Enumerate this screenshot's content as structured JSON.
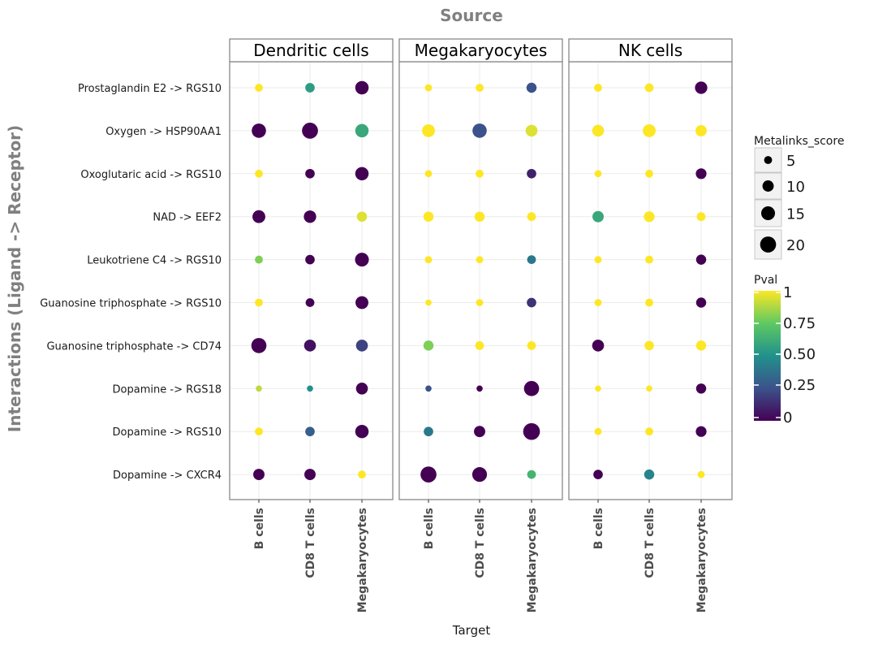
{
  "chart_data": {
    "type": "scatter",
    "title": "Source",
    "xlabel": "Target",
    "ylabel": "Interactions (Ligand -> Receptor)",
    "facets": [
      "Dendritic cells",
      "Megakaryocytes",
      "NK cells"
    ],
    "x_categories": [
      "B cells",
      "CD8 T cells",
      "Megakaryocytes"
    ],
    "y_categories": [
      "Prostaglandin E2 -> RGS10",
      "Oxygen -> HSP90AA1",
      "Oxoglutaric acid -> RGS10",
      "NAD -> EEF2",
      "Leukotriene C4 -> RGS10",
      "Guanosine triphosphate -> RGS10",
      "Guanosine triphosphate -> CD74",
      "Dopamine -> RGS18",
      "Dopamine -> RGS10",
      "Dopamine -> CXCR4"
    ],
    "size_variable": "Metalinks_score",
    "color_variable": "Pval",
    "size_legend": [
      5,
      10,
      15,
      20
    ],
    "color_legend_ticks": [
      "1",
      "0.75",
      "0.50",
      "0.25",
      "0"
    ],
    "color_range": [
      0,
      1
    ],
    "colormap": "viridis",
    "grid": true,
    "legend_position": "right",
    "points": [
      {
        "facet": "Dendritic cells",
        "x": "B cells",
        "y": "Prostaglandin E2 -> RGS10",
        "size": 5,
        "pval": 1.0
      },
      {
        "facet": "Dendritic cells",
        "x": "CD8 T cells",
        "y": "Prostaglandin E2 -> RGS10",
        "size": 7,
        "pval": 0.55
      },
      {
        "facet": "Dendritic cells",
        "x": "Megakaryocytes",
        "y": "Prostaglandin E2 -> RGS10",
        "size": 14,
        "pval": 0.0
      },
      {
        "facet": "Megakaryocytes",
        "x": "B cells",
        "y": "Prostaglandin E2 -> RGS10",
        "size": 4,
        "pval": 1.0
      },
      {
        "facet": "Megakaryocytes",
        "x": "CD8 T cells",
        "y": "Prostaglandin E2 -> RGS10",
        "size": 5,
        "pval": 1.0
      },
      {
        "facet": "Megakaryocytes",
        "x": "Megakaryocytes",
        "y": "Prostaglandin E2 -> RGS10",
        "size": 8,
        "pval": 0.25
      },
      {
        "facet": "NK cells",
        "x": "B cells",
        "y": "Prostaglandin E2 -> RGS10",
        "size": 5,
        "pval": 1.0
      },
      {
        "facet": "NK cells",
        "x": "CD8 T cells",
        "y": "Prostaglandin E2 -> RGS10",
        "size": 6,
        "pval": 1.0
      },
      {
        "facet": "NK cells",
        "x": "Megakaryocytes",
        "y": "Prostaglandin E2 -> RGS10",
        "size": 12,
        "pval": 0.0
      },
      {
        "facet": "Dendritic cells",
        "x": "B cells",
        "y": "Oxygen -> HSP90AA1",
        "size": 16,
        "pval": 0.0
      },
      {
        "facet": "Dendritic cells",
        "x": "CD8 T cells",
        "y": "Oxygen -> HSP90AA1",
        "size": 20,
        "pval": 0.0
      },
      {
        "facet": "Dendritic cells",
        "x": "Megakaryocytes",
        "y": "Oxygen -> HSP90AA1",
        "size": 14,
        "pval": 0.6
      },
      {
        "facet": "Megakaryocytes",
        "x": "B cells",
        "y": "Oxygen -> HSP90AA1",
        "size": 13,
        "pval": 1.0
      },
      {
        "facet": "Megakaryocytes",
        "x": "CD8 T cells",
        "y": "Oxygen -> HSP90AA1",
        "size": 16,
        "pval": 0.25
      },
      {
        "facet": "Megakaryocytes",
        "x": "Megakaryocytes",
        "y": "Oxygen -> HSP90AA1",
        "size": 11,
        "pval": 0.95
      },
      {
        "facet": "NK cells",
        "x": "B cells",
        "y": "Oxygen -> HSP90AA1",
        "size": 11,
        "pval": 1.0
      },
      {
        "facet": "NK cells",
        "x": "CD8 T cells",
        "y": "Oxygen -> HSP90AA1",
        "size": 13,
        "pval": 1.0
      },
      {
        "facet": "NK cells",
        "x": "Megakaryocytes",
        "y": "Oxygen -> HSP90AA1",
        "size": 10,
        "pval": 1.0
      },
      {
        "facet": "Dendritic cells",
        "x": "B cells",
        "y": "Oxoglutaric acid -> RGS10",
        "size": 5,
        "pval": 1.0
      },
      {
        "facet": "Dendritic cells",
        "x": "CD8 T cells",
        "y": "Oxoglutaric acid -> RGS10",
        "size": 7,
        "pval": 0.0
      },
      {
        "facet": "Dendritic cells",
        "x": "Megakaryocytes",
        "y": "Oxoglutaric acid -> RGS10",
        "size": 14,
        "pval": 0.0
      },
      {
        "facet": "Megakaryocytes",
        "x": "B cells",
        "y": "Oxoglutaric acid -> RGS10",
        "size": 4,
        "pval": 1.0
      },
      {
        "facet": "Megakaryocytes",
        "x": "CD8 T cells",
        "y": "Oxoglutaric acid -> RGS10",
        "size": 5,
        "pval": 1.0
      },
      {
        "facet": "Megakaryocytes",
        "x": "Megakaryocytes",
        "y": "Oxoglutaric acid -> RGS10",
        "size": 7,
        "pval": 0.1
      },
      {
        "facet": "NK cells",
        "x": "B cells",
        "y": "Oxoglutaric acid -> RGS10",
        "size": 4,
        "pval": 1.0
      },
      {
        "facet": "NK cells",
        "x": "CD8 T cells",
        "y": "Oxoglutaric acid -> RGS10",
        "size": 5,
        "pval": 1.0
      },
      {
        "facet": "NK cells",
        "x": "Megakaryocytes",
        "y": "Oxoglutaric acid -> RGS10",
        "size": 9,
        "pval": 0.0
      },
      {
        "facet": "Dendritic cells",
        "x": "B cells",
        "y": "NAD -> EEF2",
        "size": 13,
        "pval": 0.0
      },
      {
        "facet": "Dendritic cells",
        "x": "CD8 T cells",
        "y": "NAD -> EEF2",
        "size": 12,
        "pval": 0.0
      },
      {
        "facet": "Dendritic cells",
        "x": "Megakaryocytes",
        "y": "NAD -> EEF2",
        "size": 8,
        "pval": 0.95
      },
      {
        "facet": "Megakaryocytes",
        "x": "B cells",
        "y": "NAD -> EEF2",
        "size": 8,
        "pval": 1.0
      },
      {
        "facet": "Megakaryocytes",
        "x": "CD8 T cells",
        "y": "NAD -> EEF2",
        "size": 8,
        "pval": 1.0
      },
      {
        "facet": "Megakaryocytes",
        "x": "Megakaryocytes",
        "y": "NAD -> EEF2",
        "size": 6,
        "pval": 1.0
      },
      {
        "facet": "NK cells",
        "x": "B cells",
        "y": "NAD -> EEF2",
        "size": 10,
        "pval": 0.6
      },
      {
        "facet": "NK cells",
        "x": "CD8 T cells",
        "y": "NAD -> EEF2",
        "size": 9,
        "pval": 1.0
      },
      {
        "facet": "NK cells",
        "x": "Megakaryocytes",
        "y": "NAD -> EEF2",
        "size": 6,
        "pval": 1.0
      },
      {
        "facet": "Dendritic cells",
        "x": "B cells",
        "y": "Leukotriene C4 -> RGS10",
        "size": 5,
        "pval": 0.8
      },
      {
        "facet": "Dendritic cells",
        "x": "CD8 T cells",
        "y": "Leukotriene C4 -> RGS10",
        "size": 7,
        "pval": 0.0
      },
      {
        "facet": "Dendritic cells",
        "x": "Megakaryocytes",
        "y": "Leukotriene C4 -> RGS10",
        "size": 15,
        "pval": 0.0
      },
      {
        "facet": "Megakaryocytes",
        "x": "B cells",
        "y": "Leukotriene C4 -> RGS10",
        "size": 4,
        "pval": 1.0
      },
      {
        "facet": "Megakaryocytes",
        "x": "CD8 T cells",
        "y": "Leukotriene C4 -> RGS10",
        "size": 4,
        "pval": 1.0
      },
      {
        "facet": "Megakaryocytes",
        "x": "Megakaryocytes",
        "y": "Leukotriene C4 -> RGS10",
        "size": 6,
        "pval": 0.4
      },
      {
        "facet": "NK cells",
        "x": "B cells",
        "y": "Leukotriene C4 -> RGS10",
        "size": 4,
        "pval": 1.0
      },
      {
        "facet": "NK cells",
        "x": "CD8 T cells",
        "y": "Leukotriene C4 -> RGS10",
        "size": 5,
        "pval": 1.0
      },
      {
        "facet": "NK cells",
        "x": "Megakaryocytes",
        "y": "Leukotriene C4 -> RGS10",
        "size": 8,
        "pval": 0.0
      },
      {
        "facet": "Dendritic cells",
        "x": "B cells",
        "y": "Guanosine triphosphate -> RGS10",
        "size": 5,
        "pval": 1.0
      },
      {
        "facet": "Dendritic cells",
        "x": "CD8 T cells",
        "y": "Guanosine triphosphate -> RGS10",
        "size": 6,
        "pval": 0.0
      },
      {
        "facet": "Dendritic cells",
        "x": "Megakaryocytes",
        "y": "Guanosine triphosphate -> RGS10",
        "size": 13,
        "pval": 0.0
      },
      {
        "facet": "Megakaryocytes",
        "x": "B cells",
        "y": "Guanosine triphosphate -> RGS10",
        "size": 3,
        "pval": 1.0
      },
      {
        "facet": "Megakaryocytes",
        "x": "CD8 T cells",
        "y": "Guanosine triphosphate -> RGS10",
        "size": 4,
        "pval": 1.0
      },
      {
        "facet": "Megakaryocytes",
        "x": "Megakaryocytes",
        "y": "Guanosine triphosphate -> RGS10",
        "size": 7,
        "pval": 0.15
      },
      {
        "facet": "NK cells",
        "x": "B cells",
        "y": "Guanosine triphosphate -> RGS10",
        "size": 4,
        "pval": 1.0
      },
      {
        "facet": "NK cells",
        "x": "CD8 T cells",
        "y": "Guanosine triphosphate -> RGS10",
        "size": 5,
        "pval": 1.0
      },
      {
        "facet": "NK cells",
        "x": "Megakaryocytes",
        "y": "Guanosine triphosphate -> RGS10",
        "size": 8,
        "pval": 0.0
      },
      {
        "facet": "Dendritic cells",
        "x": "B cells",
        "y": "Guanosine triphosphate -> CD74",
        "size": 18,
        "pval": 0.0
      },
      {
        "facet": "Dendritic cells",
        "x": "CD8 T cells",
        "y": "Guanosine triphosphate -> CD74",
        "size": 11,
        "pval": 0.05
      },
      {
        "facet": "Dendritic cells",
        "x": "Megakaryocytes",
        "y": "Guanosine triphosphate -> CD74",
        "size": 11,
        "pval": 0.2
      },
      {
        "facet": "Megakaryocytes",
        "x": "B cells",
        "y": "Guanosine triphosphate -> CD74",
        "size": 8,
        "pval": 0.8
      },
      {
        "facet": "Megakaryocytes",
        "x": "CD8 T cells",
        "y": "Guanosine triphosphate -> CD74",
        "size": 6,
        "pval": 1.0
      },
      {
        "facet": "Megakaryocytes",
        "x": "Megakaryocytes",
        "y": "Guanosine triphosphate -> CD74",
        "size": 6,
        "pval": 1.0
      },
      {
        "facet": "NK cells",
        "x": "B cells",
        "y": "Guanosine triphosphate -> CD74",
        "size": 11,
        "pval": 0.0
      },
      {
        "facet": "NK cells",
        "x": "CD8 T cells",
        "y": "Guanosine triphosphate -> CD74",
        "size": 7,
        "pval": 1.0
      },
      {
        "facet": "NK cells",
        "x": "Megakaryocytes",
        "y": "Guanosine triphosphate -> CD74",
        "size": 8,
        "pval": 1.0
      },
      {
        "facet": "Dendritic cells",
        "x": "B cells",
        "y": "Dopamine -> RGS18",
        "size": 3,
        "pval": 0.9
      },
      {
        "facet": "Dendritic cells",
        "x": "CD8 T cells",
        "y": "Dopamine -> RGS18",
        "size": 3,
        "pval": 0.5
      },
      {
        "facet": "Dendritic cells",
        "x": "Megakaryocytes",
        "y": "Dopamine -> RGS18",
        "size": 11,
        "pval": 0.0
      },
      {
        "facet": "Megakaryocytes",
        "x": "B cells",
        "y": "Dopamine -> RGS18",
        "size": 3,
        "pval": 0.25
      },
      {
        "facet": "Megakaryocytes",
        "x": "CD8 T cells",
        "y": "Dopamine -> RGS18",
        "size": 3,
        "pval": 0.0
      },
      {
        "facet": "Megakaryocytes",
        "x": "Megakaryocytes",
        "y": "Dopamine -> RGS18",
        "size": 18,
        "pval": 0.0
      },
      {
        "facet": "NK cells",
        "x": "B cells",
        "y": "Dopamine -> RGS18",
        "size": 3,
        "pval": 1.0
      },
      {
        "facet": "NK cells",
        "x": "CD8 T cells",
        "y": "Dopamine -> RGS18",
        "size": 3,
        "pval": 1.0
      },
      {
        "facet": "NK cells",
        "x": "Megakaryocytes",
        "y": "Dopamine -> RGS18",
        "size": 8,
        "pval": 0.0
      },
      {
        "facet": "Dendritic cells",
        "x": "B cells",
        "y": "Dopamine -> RGS10",
        "size": 5,
        "pval": 1.0
      },
      {
        "facet": "Dendritic cells",
        "x": "CD8 T cells",
        "y": "Dopamine -> RGS10",
        "size": 7,
        "pval": 0.3
      },
      {
        "facet": "Dendritic cells",
        "x": "Megakaryocytes",
        "y": "Dopamine -> RGS10",
        "size": 14,
        "pval": 0.0
      },
      {
        "facet": "Megakaryocytes",
        "x": "B cells",
        "y": "Dopamine -> RGS10",
        "size": 7,
        "pval": 0.4
      },
      {
        "facet": "Megakaryocytes",
        "x": "CD8 T cells",
        "y": "Dopamine -> RGS10",
        "size": 10,
        "pval": 0.0
      },
      {
        "facet": "Megakaryocytes",
        "x": "Megakaryocytes",
        "y": "Dopamine -> RGS10",
        "size": 22,
        "pval": 0.0
      },
      {
        "facet": "NK cells",
        "x": "B cells",
        "y": "Dopamine -> RGS10",
        "size": 4,
        "pval": 1.0
      },
      {
        "facet": "NK cells",
        "x": "CD8 T cells",
        "y": "Dopamine -> RGS10",
        "size": 5,
        "pval": 1.0
      },
      {
        "facet": "NK cells",
        "x": "Megakaryocytes",
        "y": "Dopamine -> RGS10",
        "size": 9,
        "pval": 0.0
      },
      {
        "facet": "Dendritic cells",
        "x": "B cells",
        "y": "Dopamine -> CXCR4",
        "size": 10,
        "pval": 0.0
      },
      {
        "facet": "Dendritic cells",
        "x": "CD8 T cells",
        "y": "Dopamine -> CXCR4",
        "size": 10,
        "pval": 0.0
      },
      {
        "facet": "Dendritic cells",
        "x": "Megakaryocytes",
        "y": "Dopamine -> CXCR4",
        "size": 5,
        "pval": 1.0
      },
      {
        "facet": "Megakaryocytes",
        "x": "B cells",
        "y": "Dopamine -> CXCR4",
        "size": 20,
        "pval": 0.0
      },
      {
        "facet": "Megakaryocytes",
        "x": "CD8 T cells",
        "y": "Dopamine -> CXCR4",
        "size": 17,
        "pval": 0.0
      },
      {
        "facet": "Megakaryocytes",
        "x": "Megakaryocytes",
        "y": "Dopamine -> CXCR4",
        "size": 6,
        "pval": 0.65
      },
      {
        "facet": "NK cells",
        "x": "B cells",
        "y": "Dopamine -> CXCR4",
        "size": 7,
        "pval": 0.0
      },
      {
        "facet": "NK cells",
        "x": "CD8 T cells",
        "y": "Dopamine -> CXCR4",
        "size": 8,
        "pval": 0.45
      },
      {
        "facet": "NK cells",
        "x": "Megakaryocytes",
        "y": "Dopamine -> CXCR4",
        "size": 4,
        "pval": 1.0
      }
    ]
  },
  "colors": {
    "title_gray": "#808080",
    "panel_border": "#7f7f7f",
    "grid": "#ebebeb",
    "legend_key_bg": "#f2f2f2",
    "legend_key_border": "#c8c8c8"
  }
}
